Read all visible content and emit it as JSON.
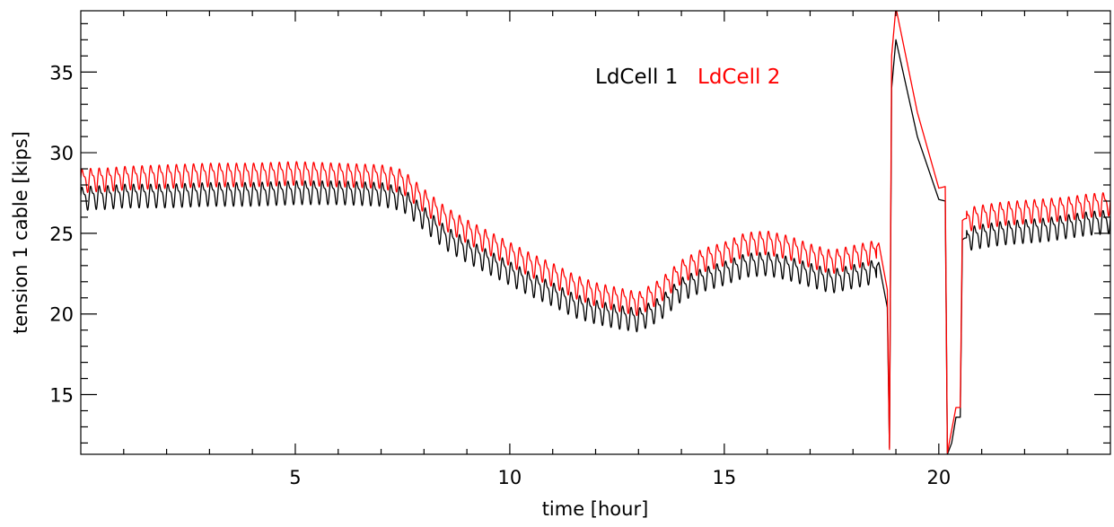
{
  "chart_data": {
    "type": "line",
    "title": "",
    "xlabel": "time [hour]",
    "ylabel": "tension 1 cable [kips]",
    "xlim": [
      0,
      24
    ],
    "ylim": [
      11.3,
      38.8
    ],
    "xticks": [
      5,
      10,
      15,
      20
    ],
    "yticks": [
      15,
      20,
      25,
      30,
      35
    ],
    "xtick_labels": [
      "5",
      "10",
      "15",
      "20"
    ],
    "ytick_labels": [
      "15",
      "20",
      "25",
      "30",
      "35"
    ],
    "grid": false,
    "legend": {
      "position": "top-center"
    },
    "series_colors": [
      "#000000",
      "#ff0000"
    ],
    "series": [
      {
        "name": "LdCell 1",
        "color": "#000000",
        "x": [
          0.0,
          0.3,
          0.6,
          1.0,
          2.0,
          3.0,
          4.0,
          5.0,
          6.0,
          7.0,
          7.5,
          8.0,
          8.5,
          9.0,
          9.5,
          10.0,
          10.5,
          11.0,
          11.5,
          12.0,
          12.5,
          13.0,
          13.5,
          14.0,
          14.5,
          15.0,
          15.5,
          16.0,
          16.5,
          17.0,
          17.5,
          18.0,
          18.5,
          18.6,
          18.8,
          18.85,
          18.9,
          19.0,
          19.5,
          20.0,
          20.15,
          20.2,
          20.3,
          20.4,
          20.5,
          20.55,
          20.6,
          21.0,
          21.5,
          22.0,
          22.5,
          23.0,
          23.5,
          24.0
        ],
        "y": [
          27.2,
          27.3,
          27.3,
          27.4,
          27.4,
          27.5,
          27.5,
          27.6,
          27.6,
          27.5,
          27.2,
          26.0,
          24.8,
          24.0,
          23.3,
          22.6,
          21.9,
          21.3,
          20.6,
          20.2,
          19.9,
          19.7,
          20.4,
          21.6,
          22.2,
          22.6,
          23.1,
          23.2,
          22.9,
          22.5,
          22.1,
          22.4,
          22.7,
          23.2,
          20.4,
          11.7,
          34.0,
          37.0,
          31.0,
          27.1,
          27.0,
          11.3,
          12.0,
          13.6,
          13.6,
          24.6,
          24.7,
          24.9,
          25.1,
          25.2,
          25.3,
          25.5,
          25.7,
          25.8
        ],
        "oscillation": {
          "period_hours": 0.2,
          "amplitude": 0.75
        }
      },
      {
        "name": "LdCell 2",
        "color": "#ff0000",
        "x": [
          0.0,
          0.3,
          0.6,
          1.0,
          2.0,
          3.0,
          4.0,
          5.0,
          6.0,
          7.0,
          7.5,
          8.0,
          8.5,
          9.0,
          9.5,
          10.0,
          10.5,
          11.0,
          11.5,
          12.0,
          12.5,
          13.0,
          13.5,
          14.0,
          14.5,
          15.0,
          15.5,
          16.0,
          16.5,
          17.0,
          17.5,
          18.0,
          18.5,
          18.6,
          18.8,
          18.85,
          18.9,
          19.0,
          19.5,
          20.0,
          20.15,
          20.2,
          20.3,
          20.4,
          20.5,
          20.55,
          20.6,
          21.0,
          21.5,
          22.0,
          22.5,
          23.0,
          23.5,
          24.0
        ],
        "y": [
          28.3,
          28.4,
          28.4,
          28.5,
          28.6,
          28.7,
          28.7,
          28.8,
          28.7,
          28.6,
          28.3,
          27.1,
          26.0,
          25.2,
          24.5,
          23.8,
          23.1,
          22.5,
          21.8,
          21.3,
          21.0,
          20.7,
          21.5,
          22.7,
          23.4,
          23.8,
          24.4,
          24.5,
          24.2,
          23.7,
          23.3,
          23.6,
          23.9,
          24.4,
          21.5,
          11.6,
          36.0,
          39.0,
          32.5,
          27.8,
          27.9,
          11.4,
          12.8,
          14.2,
          14.2,
          25.8,
          25.9,
          26.1,
          26.3,
          26.4,
          26.5,
          26.6,
          26.8,
          26.9
        ],
        "oscillation": {
          "period_hours": 0.2,
          "amplitude": 0.75
        }
      }
    ]
  }
}
